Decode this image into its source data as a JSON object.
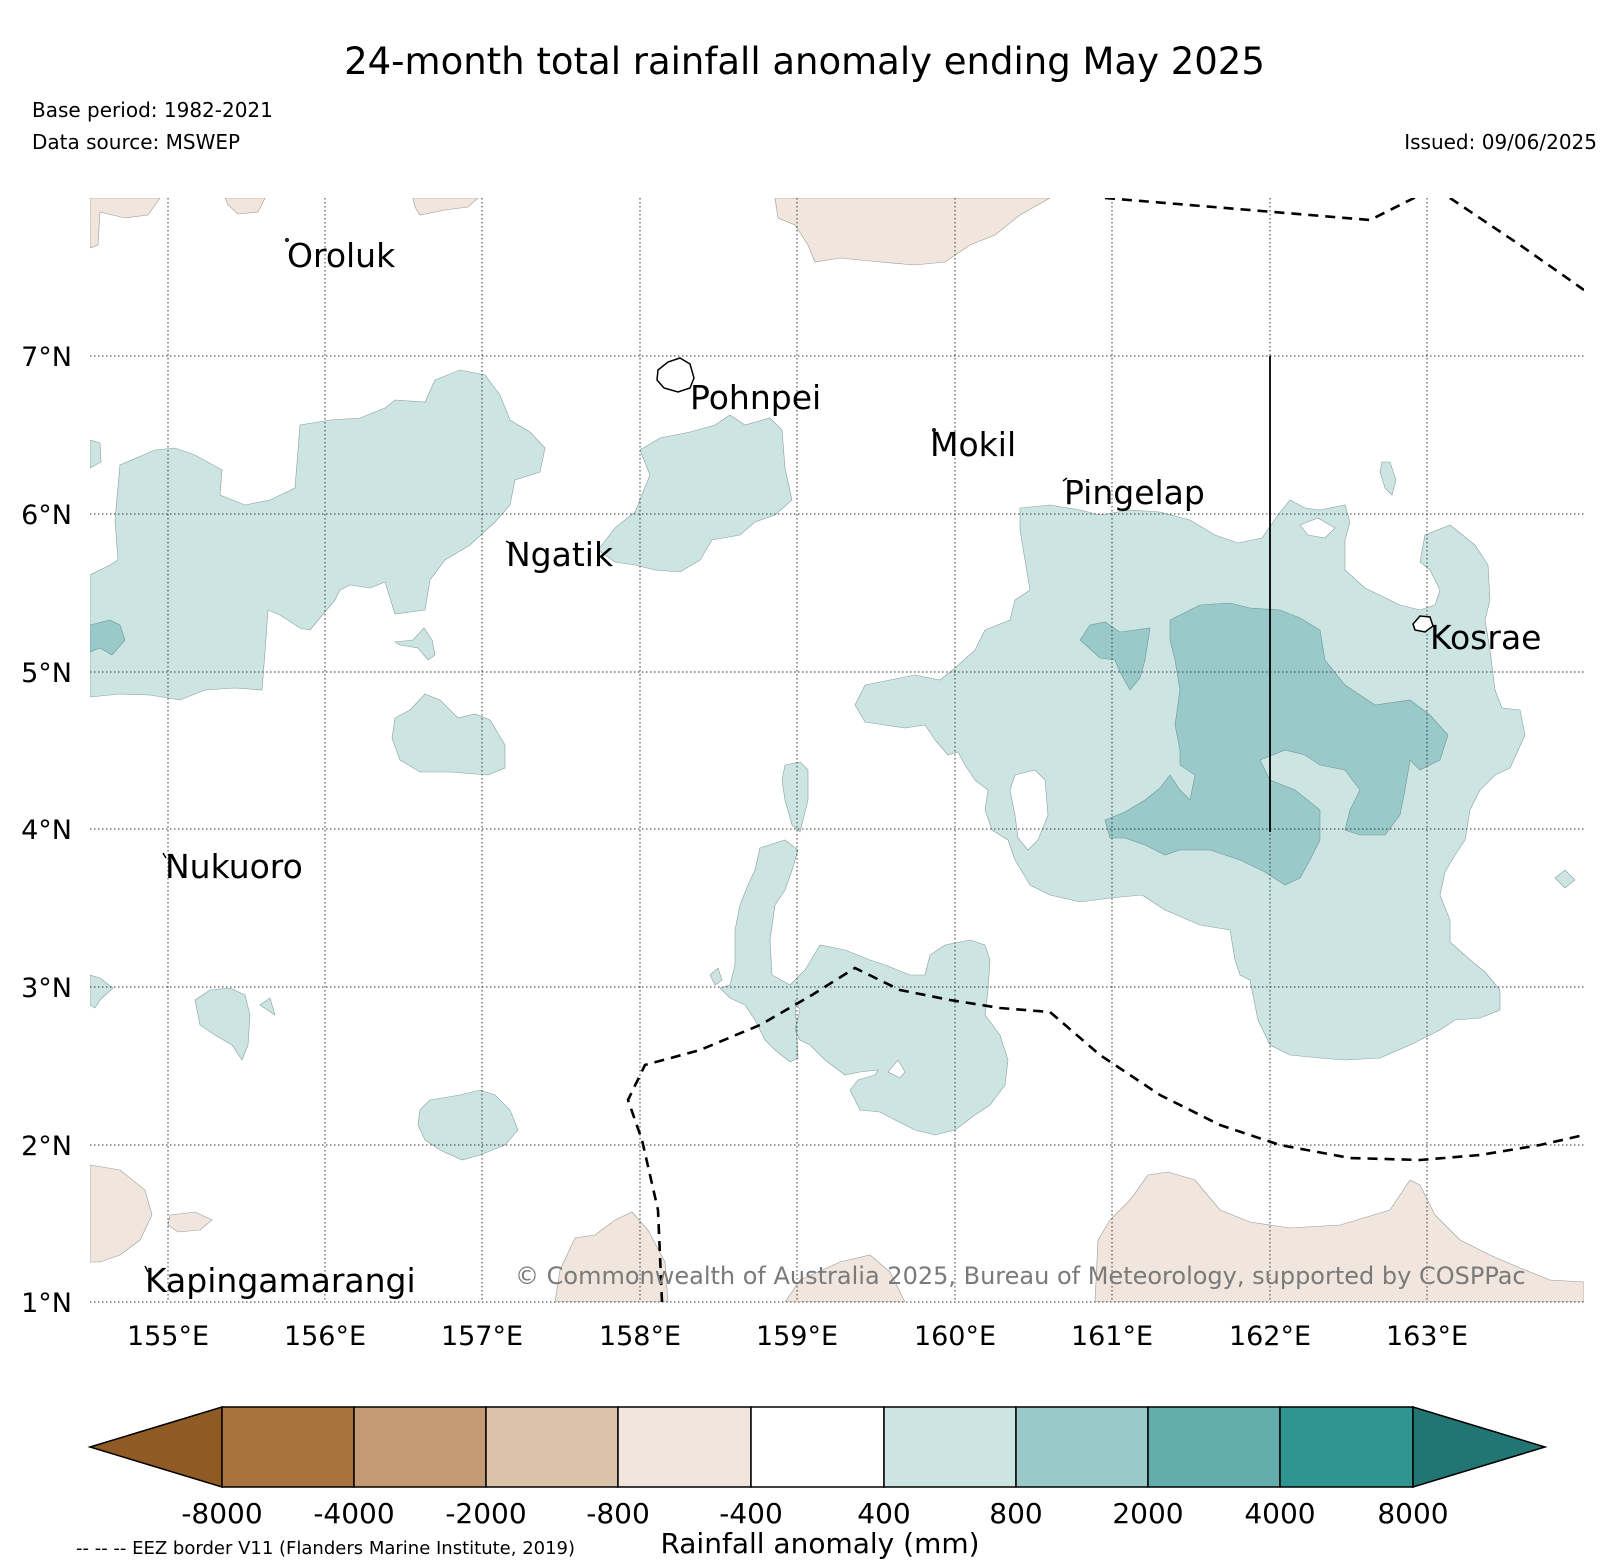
{
  "header": {
    "title": "24-month total rainfall anomaly ending May 2025",
    "base_period": "Base period: 1982-2021",
    "data_source": "Data source: MSWEP",
    "issued": "Issued: 09/06/2025"
  },
  "map": {
    "region": {
      "lon_min": 154.5,
      "lon_max": 164.0,
      "lat_min": 1.0,
      "lat_max": 8.0
    },
    "lat_ticks": [
      {
        "value": 7,
        "label": "7°N"
      },
      {
        "value": 6,
        "label": "6°N"
      },
      {
        "value": 5,
        "label": "5°N"
      },
      {
        "value": 4,
        "label": "4°N"
      },
      {
        "value": 3,
        "label": "3°N"
      },
      {
        "value": 2,
        "label": "2°N"
      },
      {
        "value": 1,
        "label": "1°N"
      }
    ],
    "lon_ticks": [
      {
        "value": 155,
        "label": "155°E"
      },
      {
        "value": 156,
        "label": "156°E"
      },
      {
        "value": 157,
        "label": "157°E"
      },
      {
        "value": 158,
        "label": "158°E"
      },
      {
        "value": 159,
        "label": "159°E"
      },
      {
        "value": 160,
        "label": "160°E"
      },
      {
        "value": 161,
        "label": "161°E"
      },
      {
        "value": 162,
        "label": "162°E"
      },
      {
        "value": 163,
        "label": "163°E"
      }
    ],
    "places": [
      {
        "name": "Oroluk",
        "lon": 155.6,
        "lat": 7.6
      },
      {
        "name": "Pohnpei",
        "lon": 158.3,
        "lat": 6.8
      },
      {
        "name": "Mokil",
        "lon": 159.8,
        "lat": 6.6
      },
      {
        "name": "Pingelap",
        "lon": 160.7,
        "lat": 6.2
      },
      {
        "name": "Ngatik",
        "lon": 157.2,
        "lat": 5.8
      },
      {
        "name": "Kosrae",
        "lon": 163.0,
        "lat": 5.3
      },
      {
        "name": "Nukuoro",
        "lon": 155.0,
        "lat": 3.85
      },
      {
        "name": "Kapingamarangi",
        "lon": 154.8,
        "lat": 1.1
      }
    ],
    "copyright": "© Commonwealth of Australia 2025, Bureau of Meteorology, supported by COSPPac",
    "grid": true,
    "eez_border_style": "dashed"
  },
  "colorbar": {
    "label": "Rainfall anomaly (mm)",
    "ticks": [
      "-8000",
      "-4000",
      "-2000",
      "-800",
      "-400",
      "400",
      "800",
      "2000",
      "4000",
      "8000"
    ],
    "colors": [
      "#8f5a24",
      "#a97340",
      "#c39a73",
      "#dbc3ab",
      "#f0e6dd",
      "#ffffff",
      "#cce5e3",
      "#99c9c9",
      "#63adad",
      "#2f9590",
      "#217572"
    ],
    "extend": "both"
  },
  "footnote": "-- -- -- EEZ border V11 (Flanders Marine Institute, 2019)"
}
